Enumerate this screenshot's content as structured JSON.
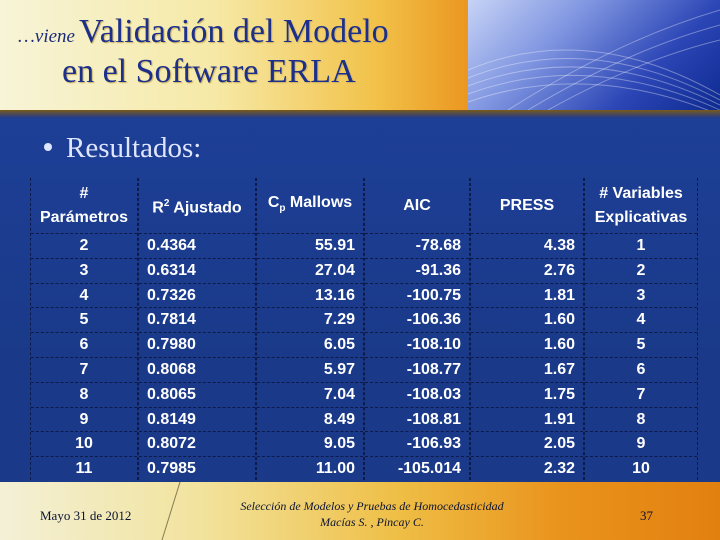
{
  "slide": {
    "title_prefix": "…viene",
    "title_line1": "Validación del Modelo",
    "title_line2": "en el Software ERLA",
    "bullet": "Resultados:"
  },
  "table": {
    "headers": {
      "parametros_1": "#",
      "parametros_2": "Parámetros",
      "r2_base": "R",
      "r2_sup": "2",
      "r2_rest": " Ajustado",
      "cp_base": "C",
      "cp_sub": "p",
      "cp_rest": " Mallows",
      "aic": "AIC",
      "press": "PRESS",
      "vars_1": "# Variables",
      "vars_2": "Explicativas"
    },
    "parametros": [
      "2",
      "3",
      "4",
      "5",
      "6",
      "7",
      "8",
      "9",
      "10",
      "11"
    ],
    "r2_ajustado": [
      "0.4364",
      "0.6314",
      "0.7326",
      "0.7814",
      "0.7980",
      "0.8068",
      "0.8065",
      "0.8149",
      "0.8072",
      "0.7985"
    ],
    "cp_mallows": [
      "55.91",
      "27.04",
      "13.16",
      "7.29",
      "6.05",
      "5.97",
      "7.04",
      "8.49",
      "9.05",
      "11.00"
    ],
    "aic": [
      "-78.68",
      "-91.36",
      "-100.75",
      "-106.36",
      "-108.10",
      "-108.77",
      "-108.03",
      "-108.81",
      "-106.93",
      "-105.014"
    ],
    "press": [
      "4.38",
      "2.76",
      "1.81",
      "1.60",
      "1.60",
      "1.67",
      "1.75",
      "1.91",
      "2.05",
      "2.32"
    ],
    "variables": [
      "1",
      "2",
      "3",
      "4",
      "5",
      "6",
      "7",
      "8",
      "9",
      "10"
    ]
  },
  "footer": {
    "date": "Mayo 31 de 2012",
    "center_line1": "Selección de Modelos y Pruebas de Homocedasticidad",
    "center_line2": "Macías S. , Pincay C.",
    "page": "37"
  }
}
